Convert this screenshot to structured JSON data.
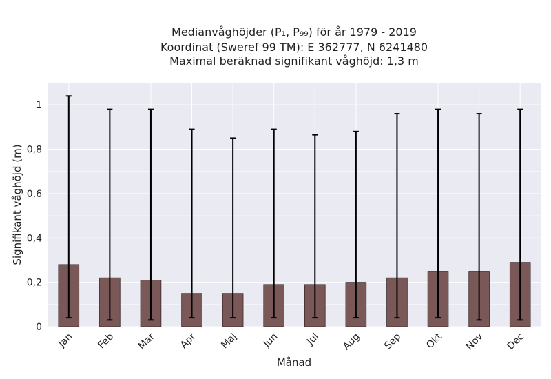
{
  "chart_data": {
    "type": "bar",
    "title_lines": [
      "Medianvåghöjder (P₁, P₉₉) för år 1979 - 2019",
      "Koordinat (Sweref 99 TM): E 362777, N 6241480",
      "Maximal beräknad signifikant våghöjd: 1,3 m"
    ],
    "xlabel": "Månad",
    "ylabel": "Signifikant våghöjd (m)",
    "categories": [
      "Jan",
      "Feb",
      "Mar",
      "Apr",
      "Maj",
      "Jun",
      "Jul",
      "Aug",
      "Sep",
      "Okt",
      "Nov",
      "Dec"
    ],
    "values": [
      0.28,
      0.22,
      0.21,
      0.15,
      0.15,
      0.19,
      0.19,
      0.2,
      0.22,
      0.25,
      0.25,
      0.29
    ],
    "p1": [
      0.04,
      0.03,
      0.03,
      0.04,
      0.04,
      0.04,
      0.04,
      0.04,
      0.04,
      0.04,
      0.03,
      0.03
    ],
    "p99": [
      1.04,
      0.98,
      0.98,
      0.89,
      0.85,
      0.89,
      0.865,
      0.88,
      0.96,
      0.98,
      0.96,
      0.98
    ],
    "ylim": [
      0,
      1.1
    ],
    "yticks": [
      0,
      0.2,
      0.4,
      0.6,
      0.8,
      1
    ],
    "ytick_labels": [
      "0",
      "0,2",
      "0,4",
      "0,6",
      "0,8",
      "1"
    ],
    "grid": true,
    "colors": {
      "bar": "#7b5858",
      "bar_edge": "#3a2a2a",
      "plot_bg": "#eaeaf2",
      "grid": "#ffffff",
      "error": "#000000"
    }
  }
}
